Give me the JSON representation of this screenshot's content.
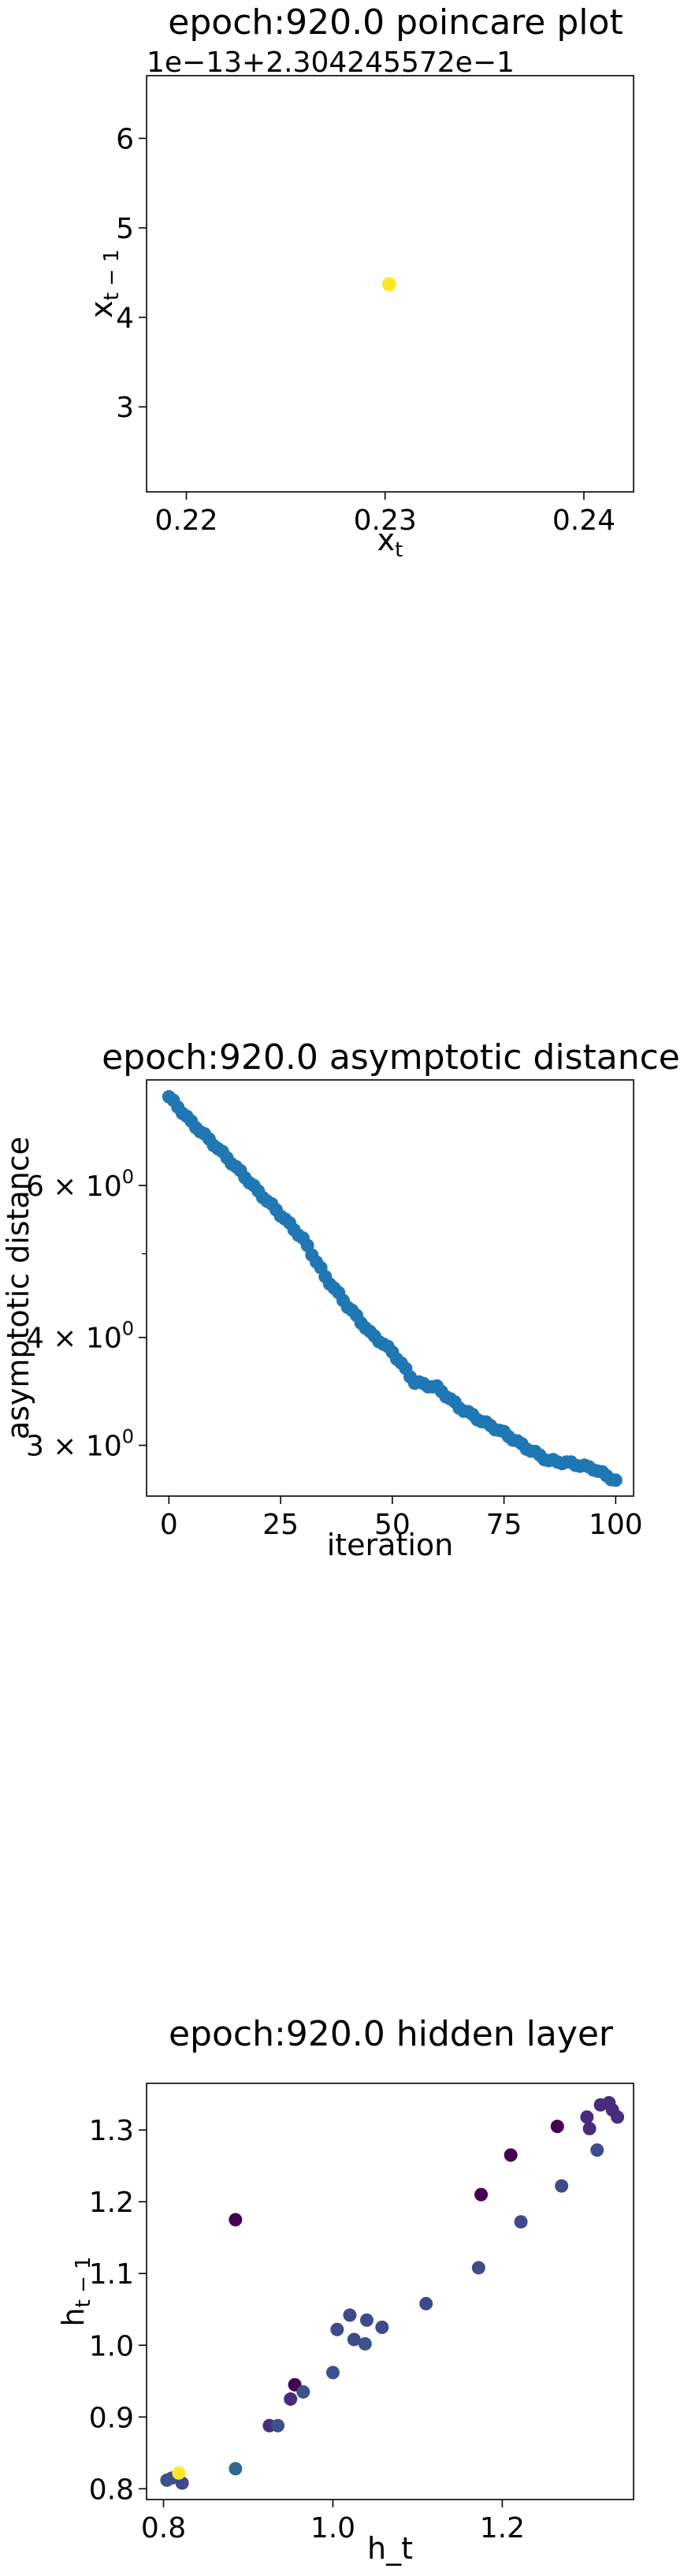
{
  "chart_data": [
    {
      "type": "scatter",
      "title": "epoch:920.0 poincare plot",
      "xlabel": "x_t",
      "ylabel": "x_t-1",
      "xlabel_main": "x",
      "xlabel_sub": "t",
      "ylabel_main": "x",
      "ylabel_sub": "t − 1",
      "offset_text": "1e−13+2.304245572e−1",
      "xlim": [
        0.218,
        0.2425
      ],
      "ylim": [
        2.05,
        6.7
      ],
      "x_ticks": [
        0.22,
        0.23,
        0.24
      ],
      "x_tick_labels": [
        "0.22",
        "0.23",
        "0.24"
      ],
      "y_ticks": [
        3,
        4,
        5,
        6
      ],
      "y_tick_labels": [
        "3",
        "4",
        "5",
        "6"
      ],
      "grid": false,
      "point_color": "#fde725",
      "points": [
        {
          "x": 0.2302,
          "y": 4.37
        }
      ]
    },
    {
      "type": "scatter",
      "title": "epoch:920.0 asymptotic distance",
      "xlabel": "iteration",
      "ylabel": "asymptotic distance",
      "xlim": [
        -5,
        104
      ],
      "ylim": [
        2.62,
        7.95
      ],
      "yscale": "log",
      "x_ticks": [
        0,
        25,
        50,
        75,
        100
      ],
      "x_tick_labels": [
        "0",
        "25",
        "50",
        "75",
        "100"
      ],
      "y_ticks": [
        3,
        4,
        6
      ],
      "y_tick_labels": [
        {
          "mantissa": "3 × 10",
          "exp": "0"
        },
        {
          "mantissa": "4 × 10",
          "exp": "0"
        },
        {
          "mantissa": "6 × 10",
          "exp": "0"
        }
      ],
      "grid": false,
      "point_color": "#1f77b4",
      "anchors": [
        [
          0,
          7.6
        ],
        [
          5,
          7.1
        ],
        [
          10,
          6.7
        ],
        [
          15,
          6.3
        ],
        [
          20,
          5.9
        ],
        [
          25,
          5.55
        ],
        [
          30,
          5.2
        ],
        [
          35,
          4.7
        ],
        [
          40,
          4.35
        ],
        [
          45,
          4.05
        ],
        [
          50,
          3.85
        ],
        [
          55,
          3.55
        ],
        [
          60,
          3.5
        ],
        [
          65,
          3.32
        ],
        [
          70,
          3.2
        ],
        [
          75,
          3.1
        ],
        [
          80,
          2.98
        ],
        [
          85,
          2.88
        ],
        [
          90,
          2.86
        ],
        [
          95,
          2.82
        ],
        [
          100,
          2.73
        ]
      ],
      "n_points": 101
    },
    {
      "type": "scatter",
      "title": "epoch:920.0 hidden layer",
      "xlabel": "h_t",
      "ylabel": "h_t-1",
      "ylabel_main": "h",
      "ylabel_sub": "t − 1",
      "xlim": [
        0.78,
        1.355
      ],
      "ylim": [
        0.785,
        1.365
      ],
      "x_ticks": [
        0.8,
        1.0,
        1.2
      ],
      "x_tick_labels": [
        "0.8",
        "1.0",
        "1.2"
      ],
      "y_ticks": [
        0.8,
        0.9,
        1.0,
        1.1,
        1.2,
        1.3
      ],
      "y_tick_labels": [
        "0.8",
        "0.9",
        "1.0",
        "1.1",
        "1.2",
        "1.3"
      ],
      "grid": false,
      "points": [
        {
          "x": 0.804,
          "y": 0.812,
          "c": "#3b528b"
        },
        {
          "x": 0.81,
          "y": 0.815,
          "c": "#3b528b"
        },
        {
          "x": 0.822,
          "y": 0.808,
          "c": "#3e4a89"
        },
        {
          "x": 0.885,
          "y": 0.828,
          "c": "#31688e"
        },
        {
          "x": 0.885,
          "y": 1.175,
          "c": "#440154"
        },
        {
          "x": 0.925,
          "y": 0.888,
          "c": "#472d7b"
        },
        {
          "x": 0.935,
          "y": 0.888,
          "c": "#3b528b"
        },
        {
          "x": 0.95,
          "y": 0.925,
          "c": "#472d7b"
        },
        {
          "x": 0.955,
          "y": 0.945,
          "c": "#440154"
        },
        {
          "x": 0.965,
          "y": 0.935,
          "c": "#3b528b"
        },
        {
          "x": 1.0,
          "y": 0.962,
          "c": "#3b528b"
        },
        {
          "x": 1.005,
          "y": 1.022,
          "c": "#3e4a89"
        },
        {
          "x": 1.02,
          "y": 1.042,
          "c": "#3e4a89"
        },
        {
          "x": 1.025,
          "y": 1.008,
          "c": "#3e4a89"
        },
        {
          "x": 1.038,
          "y": 1.002,
          "c": "#3b528b"
        },
        {
          "x": 1.04,
          "y": 1.035,
          "c": "#3e4a89"
        },
        {
          "x": 1.058,
          "y": 1.025,
          "c": "#3e4a89"
        },
        {
          "x": 1.11,
          "y": 1.058,
          "c": "#3e4a89"
        },
        {
          "x": 1.172,
          "y": 1.108,
          "c": "#3e4a89"
        },
        {
          "x": 1.175,
          "y": 1.21,
          "c": "#440154"
        },
        {
          "x": 1.21,
          "y": 1.265,
          "c": "#440154"
        },
        {
          "x": 1.222,
          "y": 1.172,
          "c": "#3e4a89"
        },
        {
          "x": 1.265,
          "y": 1.305,
          "c": "#440154"
        },
        {
          "x": 1.27,
          "y": 1.222,
          "c": "#3e4a89"
        },
        {
          "x": 1.3,
          "y": 1.318,
          "c": "#472d7b"
        },
        {
          "x": 1.303,
          "y": 1.302,
          "c": "#472d7b"
        },
        {
          "x": 1.312,
          "y": 1.272,
          "c": "#3e4a89"
        },
        {
          "x": 1.316,
          "y": 1.335,
          "c": "#472d7b"
        },
        {
          "x": 1.326,
          "y": 1.338,
          "c": "#472d7b"
        },
        {
          "x": 1.33,
          "y": 1.328,
          "c": "#472d7b"
        },
        {
          "x": 1.336,
          "y": 1.318,
          "c": "#472d7b"
        },
        {
          "x": 0.818,
          "y": 0.822,
          "c": "#fde725"
        }
      ]
    }
  ]
}
